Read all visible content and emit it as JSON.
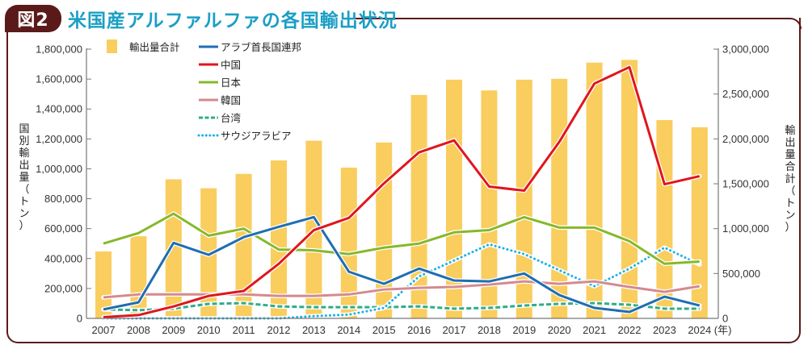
{
  "figure": {
    "badge": "図2",
    "title": "米国産アルファルファの各国輸出状況"
  },
  "chart_data": {
    "type": "bar+line",
    "title": "米国産アルファルファの各国輸出状況",
    "categories": [
      "2007",
      "2008",
      "2009",
      "2010",
      "2011",
      "2012",
      "2013",
      "2014",
      "2015",
      "2016",
      "2017",
      "2018",
      "2019",
      "2020",
      "2021",
      "2022",
      "2023",
      "2024"
    ],
    "x_unit": "(年)",
    "left_axis": {
      "label": "国別輸出量（トン）",
      "range": [
        0,
        1800000
      ],
      "ticks": [
        "0",
        "200,000",
        "400,000",
        "600,000",
        "800,000",
        "1,000,000",
        "1,200,000",
        "1,400,000",
        "1,600,000",
        "1,800,000"
      ]
    },
    "right_axis": {
      "label": "輸出量合計（トン）",
      "range": [
        0,
        3000000
      ],
      "ticks": [
        "0",
        "500,000",
        "1,000,000",
        "1,500,000",
        "2,000,000",
        "2,500,000",
        "3,000,000"
      ]
    },
    "bars": {
      "name": "輸出量合計",
      "axis": "right",
      "color": "#f9cd5e",
      "values": [
        745000,
        915000,
        1550000,
        1450000,
        1610000,
        1760000,
        1980000,
        1680000,
        1960000,
        2490000,
        2660000,
        2540000,
        2660000,
        2670000,
        2850000,
        2880000,
        2210000,
        2130000
      ]
    },
    "series": [
      {
        "name": "アラブ首長国連邦",
        "axis": "left",
        "color": "#1f6db3",
        "style": "solid",
        "values": [
          60000,
          107000,
          505000,
          425000,
          543000,
          612000,
          677000,
          312000,
          231000,
          333000,
          253000,
          247000,
          300000,
          156000,
          70000,
          43000,
          145000,
          86000
        ]
      },
      {
        "name": "中国",
        "axis": "left",
        "color": "#e0151d",
        "style": "solid",
        "values": [
          8000,
          22000,
          80000,
          150000,
          183000,
          365000,
          590000,
          672000,
          903000,
          1110000,
          1190000,
          881000,
          854000,
          1180000,
          1570000,
          1680000,
          897000,
          951000
        ]
      },
      {
        "name": "日本",
        "axis": "left",
        "color": "#86b82a",
        "style": "solid",
        "values": [
          500000,
          570000,
          700000,
          553000,
          600000,
          460000,
          455000,
          430000,
          473000,
          500000,
          575000,
          590000,
          677000,
          607000,
          607000,
          516000,
          365000,
          380000
        ]
      },
      {
        "name": "韓国",
        "axis": "left",
        "color": "#d48a8e",
        "style": "solid",
        "values": [
          140000,
          160000,
          160000,
          160000,
          160000,
          150000,
          150000,
          160000,
          193000,
          204000,
          210000,
          226000,
          247000,
          231000,
          247000,
          210000,
          177000,
          215000
        ]
      },
      {
        "name": "台湾",
        "axis": "left",
        "color": "#2fad87",
        "style": "dashed",
        "values": [
          60000,
          55000,
          65000,
          97000,
          102000,
          80000,
          75000,
          75000,
          75000,
          80000,
          65000,
          70000,
          86000,
          97000,
          102000,
          91000,
          65000,
          65000
        ]
      },
      {
        "name": "サウジアラビア",
        "axis": "left",
        "color": "#1ab1e6",
        "style": "dotted",
        "values": [
          0,
          0,
          0,
          0,
          0,
          0,
          15000,
          25000,
          70000,
          280000,
          387000,
          495000,
          430000,
          322000,
          215000,
          333000,
          473000,
          360000
        ]
      }
    ],
    "legend": {
      "placement": "top-left",
      "items": [
        "輸出量合計",
        "アラブ首長国連邦",
        "中国",
        "日本",
        "韓国",
        "台湾",
        "サウジアラビア"
      ]
    },
    "grid": false
  }
}
